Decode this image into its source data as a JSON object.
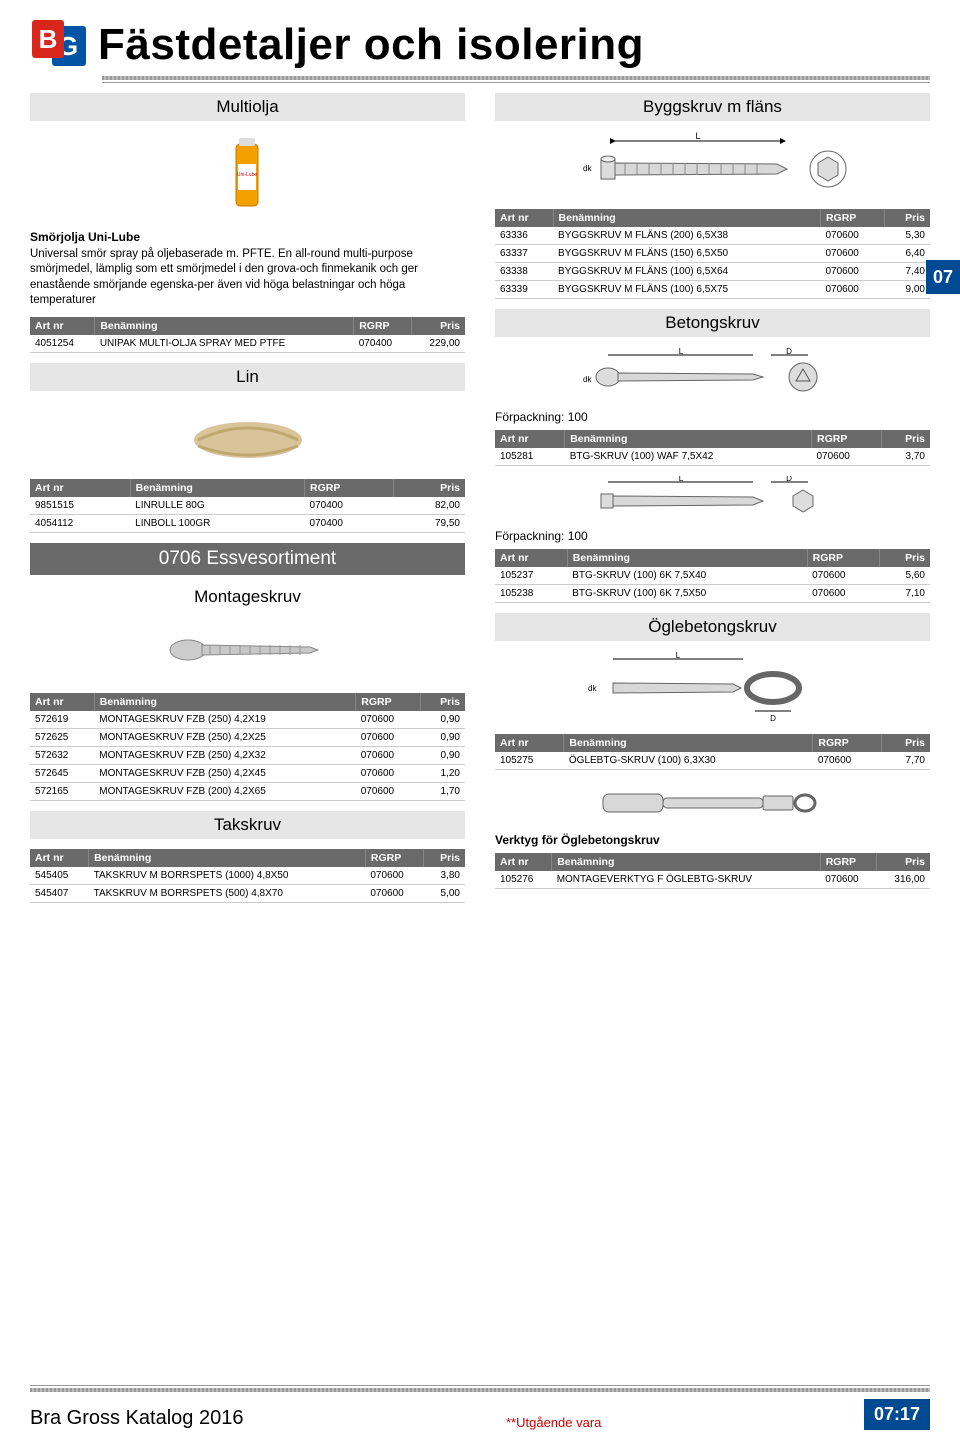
{
  "page_title": "Fästdetaljer och isolering",
  "side_tab": "07",
  "footer": {
    "left": "Bra Gross Katalog 2016",
    "mid": "**Utgående vara",
    "page": "07:17"
  },
  "table_headers": {
    "artnr": "Art nr",
    "benamning": "Benämning",
    "rgrp": "RGRP",
    "pris": "Pris"
  },
  "left": {
    "multiolja": {
      "title": "Multiolja",
      "caption_bold": "Smörjolja Uni-Lube",
      "caption_line": "Universal smör spray på oljebaserade m. PFTE.",
      "caption_body": "En all-round multi-purpose smörjmedel, lämplig som ett smörjmedel i den grova-och finmekanik och ger enastående smörjande egenska-per även vid höga belastningar och höga temperaturer",
      "rows": [
        {
          "artnr": "4051254",
          "ben": "UNIPAK MULTI-OLJA SPRAY MED PTFE",
          "rgrp": "070400",
          "pris": "229,00"
        }
      ]
    },
    "lin": {
      "title": "Lin",
      "rows": [
        {
          "artnr": "9851515",
          "ben": "LINRULLE 80G",
          "rgrp": "070400",
          "pris": "82,00"
        },
        {
          "artnr": "4054112",
          "ben": "LINBOLL 100GR",
          "rgrp": "070400",
          "pris": "79,50"
        }
      ]
    },
    "essve_title": "0706 Essvesortiment",
    "montageskruv": {
      "title": "Montageskruv",
      "rows": [
        {
          "artnr": "572619",
          "ben": "MONTAGESKRUV FZB (250) 4,2X19",
          "rgrp": "070600",
          "pris": "0,90"
        },
        {
          "artnr": "572625",
          "ben": "MONTAGESKRUV FZB (250) 4,2X25",
          "rgrp": "070600",
          "pris": "0,90"
        },
        {
          "artnr": "572632",
          "ben": "MONTAGESKRUV FZB (250) 4,2X32",
          "rgrp": "070600",
          "pris": "0,90"
        },
        {
          "artnr": "572645",
          "ben": "MONTAGESKRUV FZB (250) 4,2X45",
          "rgrp": "070600",
          "pris": "1,20"
        },
        {
          "artnr": "572165",
          "ben": "MONTAGESKRUV FZB (200) 4,2X65",
          "rgrp": "070600",
          "pris": "1,70"
        }
      ]
    },
    "takskruv": {
      "title": "Takskruv",
      "rows": [
        {
          "artnr": "545405",
          "ben": "TAKSKRUV M BORRSPETS (1000) 4,8X50",
          "rgrp": "070600",
          "pris": "3,80"
        },
        {
          "artnr": "545407",
          "ben": "TAKSKRUV M BORRSPETS (500) 4,8X70",
          "rgrp": "070600",
          "pris": "5,00"
        }
      ]
    }
  },
  "right": {
    "byggskruv": {
      "title": "Byggskruv m fläns",
      "rows": [
        {
          "artnr": "63336",
          "ben": "BYGGSKRUV M FLÄNS (200) 6,5X38",
          "rgrp": "070600",
          "pris": "5,30"
        },
        {
          "artnr": "63337",
          "ben": "BYGGSKRUV M FLÄNS (150) 6,5X50",
          "rgrp": "070600",
          "pris": "6,40"
        },
        {
          "artnr": "63338",
          "ben": "BYGGSKRUV M FLÄNS (100) 6,5X64",
          "rgrp": "070600",
          "pris": "7,40"
        },
        {
          "artnr": "63339",
          "ben": "BYGGSKRUV M FLÄNS (100) 6,5X75",
          "rgrp": "070600",
          "pris": "9,00"
        }
      ]
    },
    "betongskruv": {
      "title": "Betongskruv",
      "pack1": "Förpackning: 100",
      "rows1": [
        {
          "artnr": "105281",
          "ben": "BTG-SKRUV (100) WAF 7,5X42",
          "rgrp": "070600",
          "pris": "3,70"
        }
      ],
      "pack2": "Förpackning: 100",
      "rows2": [
        {
          "artnr": "105237",
          "ben": "BTG-SKRUV (100) 6K 7,5X40",
          "rgrp": "070600",
          "pris": "5,60"
        },
        {
          "artnr": "105238",
          "ben": "BTG-SKRUV (100) 6K 7,5X50",
          "rgrp": "070600",
          "pris": "7,10"
        }
      ]
    },
    "oglebetong": {
      "title": "Öglebetongskruv",
      "rows": [
        {
          "artnr": "105275",
          "ben": "ÖGLEBTG-SKRUV (100) 6,3X30",
          "rgrp": "070600",
          "pris": "7,70"
        }
      ],
      "verktyg_label": "Verktyg för Öglebetongskruv",
      "verktyg_rows": [
        {
          "artnr": "105276",
          "ben": "MONTAGEVERKTYG F ÖGLEBTG-SKRUV",
          "rgrp": "070600",
          "pris": "316,00"
        }
      ]
    }
  },
  "colors": {
    "brand_blue": "#004a93",
    "header_grey": "#6a6a6a",
    "light_grey": "#e6e6e6"
  }
}
